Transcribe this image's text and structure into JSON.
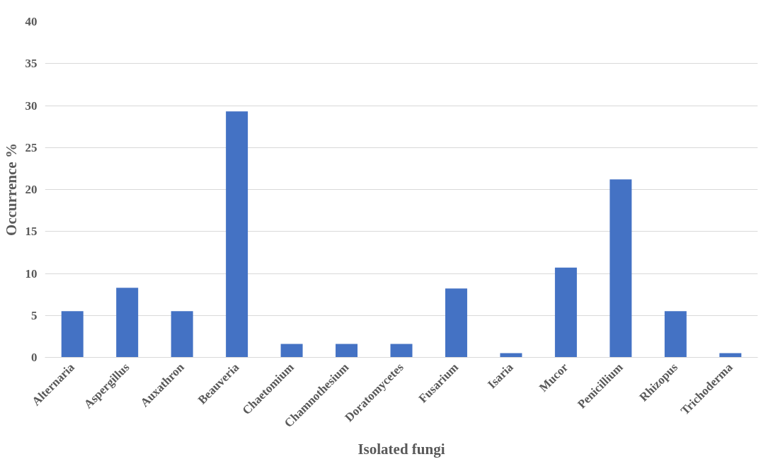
{
  "chart_data": {
    "type": "bar",
    "xlabel": "Isolated fungi",
    "ylabel": "Occurrence %",
    "categories": [
      "Alternaria",
      "Aspergillus",
      "Auxathron",
      "Beauveria",
      "Chaetomium",
      "Chamnothesium",
      "Doratomycetes",
      "Fusarium",
      "Isaria",
      "Mucor",
      "Penicillium",
      "Rhizopus",
      "Trichoderma"
    ],
    "values": [
      5.5,
      8.3,
      5.5,
      29.3,
      1.6,
      1.6,
      1.6,
      8.2,
      0.5,
      10.7,
      21.2,
      5.5,
      0.5
    ],
    "color": "#4472c4",
    "ylim": [
      0,
      40
    ],
    "yticks": [
      0,
      5,
      10,
      15,
      20,
      25,
      30,
      35,
      40
    ],
    "grid": "y"
  }
}
